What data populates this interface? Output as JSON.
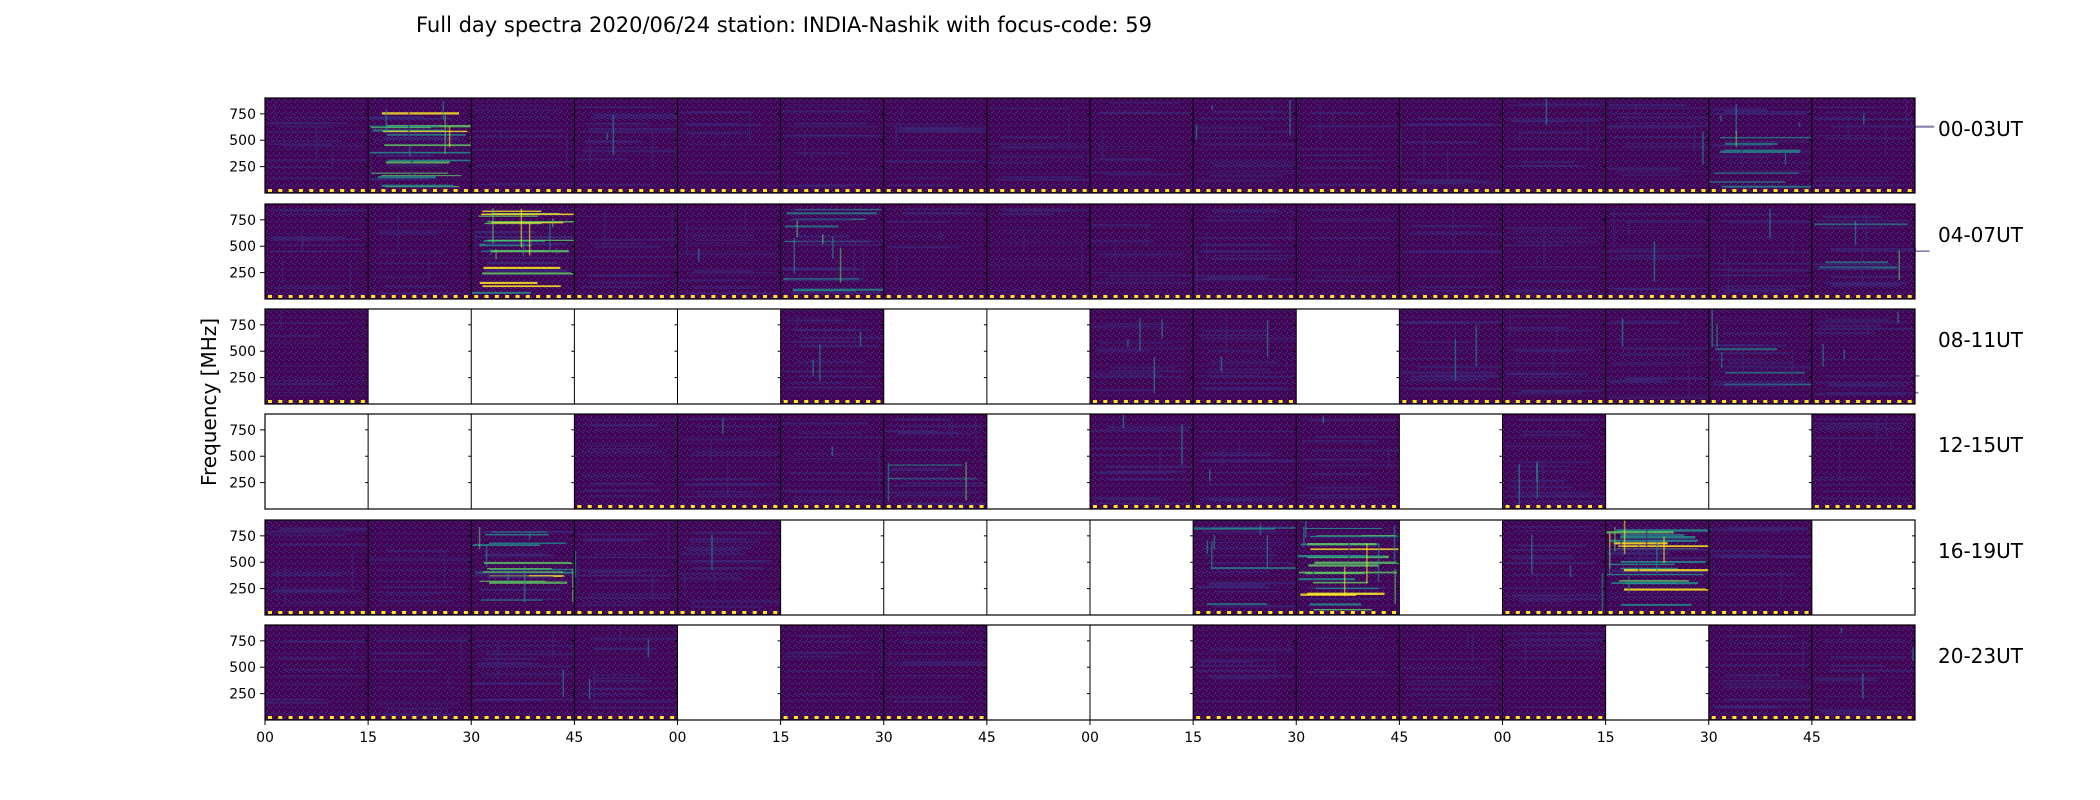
{
  "chart_data": {
    "type": "heatmap",
    "title": "Full day spectra 2020/06/24 station: INDIA-Nashik with focus-code: 59",
    "ylabel": "Frequency [MHz]",
    "xlabel": "",
    "ylim": [
      0,
      900
    ],
    "y_ticks": [
      250,
      500,
      750
    ],
    "x_tick_labels": [
      "00",
      "15",
      "30",
      "45",
      "00",
      "15",
      "30",
      "45",
      "00",
      "15",
      "30",
      "45",
      "00",
      "15",
      "30",
      "45"
    ],
    "panels_per_row": 16,
    "panel_minutes": 15,
    "colormap": "viridis",
    "colors": {
      "background": "#440154",
      "low": "#3b2a7a",
      "mid": "#21908c",
      "high": "#5ec962",
      "peak": "#fde725",
      "empty": "#ffffff"
    },
    "rows": [
      {
        "label": "00-03UT",
        "has_data": [
          1,
          1,
          1,
          1,
          1,
          1,
          1,
          1,
          1,
          1,
          1,
          1,
          1,
          1,
          1,
          1
        ],
        "intensity": [
          0.25,
          0.75,
          0.2,
          0.35,
          0.15,
          0.25,
          0.25,
          0.2,
          0.2,
          0.3,
          0.15,
          0.25,
          0.3,
          0.35,
          0.5,
          0.3
        ]
      },
      {
        "label": "04-07UT",
        "has_data": [
          1,
          1,
          1,
          1,
          1,
          1,
          1,
          1,
          1,
          1,
          1,
          1,
          1,
          1,
          1,
          1
        ],
        "intensity": [
          0.3,
          0.2,
          0.8,
          0.2,
          0.25,
          0.55,
          0.15,
          0.2,
          0.15,
          0.35,
          0.15,
          0.2,
          0.2,
          0.25,
          0.35,
          0.45
        ]
      },
      {
        "label": "08-11UT",
        "has_data": [
          1,
          0,
          0,
          0,
          0,
          1,
          0,
          0,
          1,
          1,
          0,
          1,
          1,
          1,
          1,
          1
        ],
        "intensity": [
          0.15,
          0,
          0,
          0,
          0,
          0.35,
          0,
          0,
          0.3,
          0.3,
          0,
          0.35,
          0.35,
          0.3,
          0.4,
          0.3
        ]
      },
      {
        "label": "12-15UT",
        "has_data": [
          0,
          0,
          0,
          1,
          1,
          1,
          1,
          0,
          1,
          1,
          1,
          0,
          1,
          0,
          0,
          1
        ],
        "intensity": [
          0,
          0,
          0,
          0.25,
          0.3,
          0.25,
          0.45,
          0,
          0.35,
          0.3,
          0.3,
          0,
          0.35,
          0,
          0,
          0.3
        ]
      },
      {
        "label": "16-19UT",
        "has_data": [
          1,
          1,
          1,
          1,
          1,
          0,
          0,
          0,
          0,
          1,
          1,
          0,
          1,
          1,
          1,
          0
        ],
        "intensity": [
          0.25,
          0.2,
          0.7,
          0.35,
          0.35,
          0,
          0,
          0,
          0,
          0.5,
          0.75,
          0,
          0.35,
          0.8,
          0.25,
          0
        ]
      },
      {
        "label": "20-23UT",
        "has_data": [
          1,
          1,
          1,
          1,
          0,
          1,
          1,
          0,
          0,
          1,
          1,
          1,
          1,
          0,
          1,
          1
        ],
        "intensity": [
          0.2,
          0.2,
          0.35,
          0.3,
          0,
          0.2,
          0.2,
          0,
          0,
          0.2,
          0,
          0.2,
          0.2,
          0,
          0.3,
          0.25
        ]
      }
    ]
  }
}
